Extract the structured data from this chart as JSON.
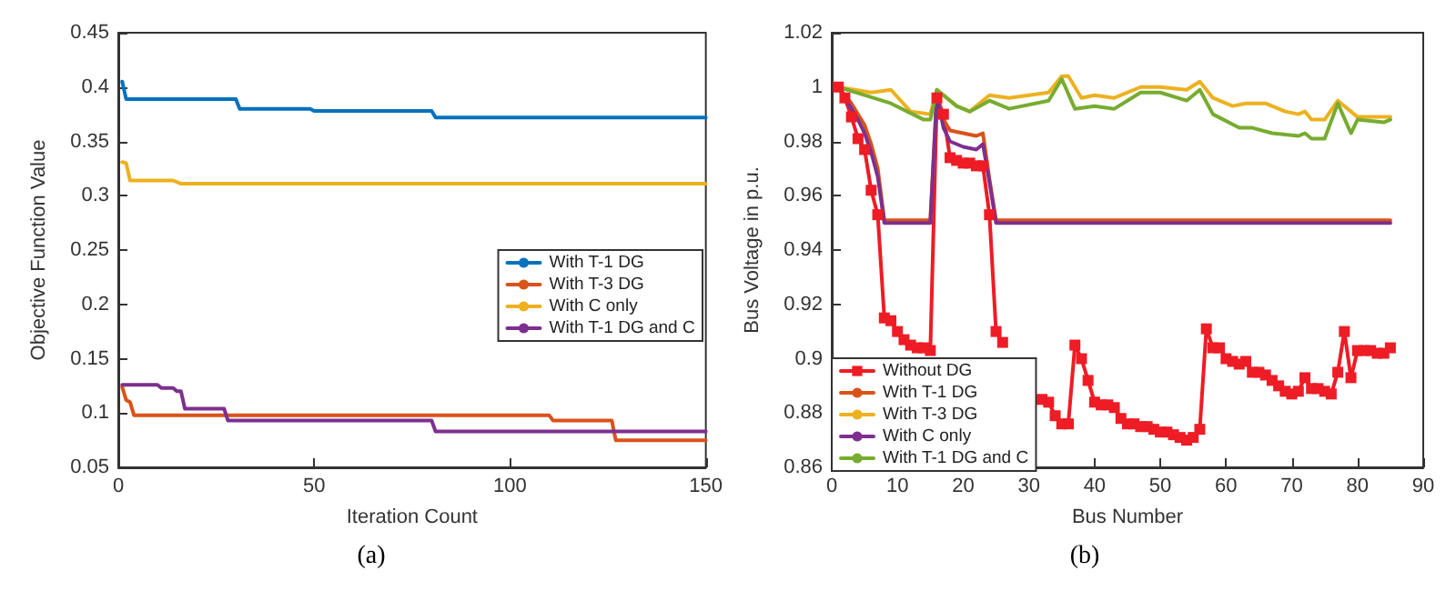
{
  "chart_data": [
    {
      "type": "line",
      "xlabel": "Iteration Count",
      "ylabel": "Objective Function Value",
      "annotations": [
        "(a)"
      ],
      "xlim": [
        0,
        150
      ],
      "xticks": [
        0,
        50,
        100,
        150
      ],
      "ylim": [
        0.05,
        0.45
      ],
      "yticks": [
        0.05,
        0.1,
        0.15,
        0.2,
        0.25,
        0.3,
        0.35,
        0.4,
        0.45
      ],
      "grid": false,
      "legend": "right",
      "marker": "none",
      "line_style": "solid",
      "series": [
        {
          "name": "With T-1 DG",
          "color": "#0072bd",
          "x": [
            1,
            2,
            30,
            31,
            49,
            50,
            80,
            81,
            150
          ],
          "values": [
            0.405,
            0.389,
            0.389,
            0.38,
            0.38,
            0.378,
            0.378,
            0.372,
            0.372
          ]
        },
        {
          "name": "With T-3 DG",
          "color": "#d95319",
          "x": [
            1,
            2,
            3,
            4,
            110,
            111,
            126,
            127,
            150
          ],
          "values": [
            0.124,
            0.112,
            0.11,
            0.098,
            0.098,
            0.093,
            0.093,
            0.075,
            0.075
          ]
        },
        {
          "name": "With C only",
          "color": "#edb120",
          "x": [
            1,
            2,
            3,
            14,
            16,
            150
          ],
          "values": [
            0.331,
            0.33,
            0.314,
            0.314,
            0.311,
            0.311
          ]
        },
        {
          "name": "With T-1 DG and C",
          "color": "#7e2f8e",
          "x": [
            1,
            10,
            11,
            14,
            15,
            16,
            17,
            27,
            28,
            80,
            81,
            150
          ],
          "values": [
            0.126,
            0.126,
            0.123,
            0.123,
            0.12,
            0.12,
            0.104,
            0.104,
            0.093,
            0.093,
            0.083,
            0.083
          ]
        }
      ]
    },
    {
      "type": "line",
      "xlabel": "Bus Number",
      "ylabel": "Bus Voltage in p.u.",
      "annotations": [
        "(b)"
      ],
      "xlim": [
        0,
        90
      ],
      "xticks": [
        0,
        10,
        20,
        30,
        40,
        50,
        60,
        70,
        80,
        90
      ],
      "ylim": [
        0.86,
        1.02
      ],
      "yticks": [
        0.86,
        0.88,
        0.9,
        0.92,
        0.94,
        0.96,
        0.98,
        1,
        1.02
      ],
      "grid": false,
      "legend": "bottom left",
      "marker": "none",
      "line_style": "solid",
      "series": [
        {
          "name": "Without DG",
          "color": "#ee1c25",
          "marker": "square",
          "x": [
            1,
            2,
            3,
            4,
            5,
            6,
            7,
            8,
            9,
            10,
            11,
            12,
            13,
            14,
            15,
            16,
            17,
            18,
            19,
            20,
            21,
            22,
            23,
            24,
            25,
            26,
            27,
            28,
            29,
            30,
            31,
            32,
            33,
            34,
            35,
            36,
            37,
            38,
            39,
            40,
            41,
            42,
            43,
            44,
            45,
            46,
            47,
            48,
            49,
            50,
            51,
            52,
            53,
            54,
            55,
            56,
            57,
            58,
            59,
            60,
            61,
            62,
            63,
            64,
            65,
            66,
            67,
            68,
            69,
            70,
            71,
            72,
            73,
            74,
            75,
            76,
            77,
            78,
            79,
            80,
            81,
            82,
            83,
            84,
            85
          ],
          "values": [
            1.0,
            0.996,
            0.989,
            0.981,
            0.977,
            0.962,
            0.953,
            0.915,
            0.914,
            0.91,
            0.907,
            0.905,
            0.904,
            0.904,
            0.903,
            0.996,
            0.99,
            0.974,
            0.973,
            0.972,
            0.972,
            0.971,
            0.971,
            0.953,
            0.91,
            0.906,
            null,
            null,
            null,
            null,
            null,
            0.885,
            0.884,
            0.879,
            0.876,
            0.876,
            0.905,
            0.9,
            0.892,
            0.884,
            0.883,
            0.883,
            0.882,
            0.878,
            0.876,
            0.876,
            0.875,
            0.875,
            0.874,
            0.873,
            0.873,
            0.872,
            0.871,
            0.87,
            0.871,
            0.874,
            0.911,
            0.904,
            0.904,
            0.9,
            0.899,
            0.898,
            0.899,
            0.895,
            0.895,
            0.894,
            0.892,
            0.89,
            0.888,
            0.887,
            0.888,
            0.893,
            0.889,
            0.889,
            0.888,
            0.887,
            0.895,
            0.91,
            0.893,
            0.903,
            0.903,
            0.903,
            0.902,
            0.902,
            0.904
          ]
        },
        {
          "name": "With T-1 DG",
          "color": "#d95319",
          "x": [
            1,
            3,
            5,
            6,
            7,
            8,
            15,
            16,
            17,
            18,
            22,
            23,
            24,
            25,
            85
          ],
          "values": [
            1.0,
            0.994,
            0.986,
            0.979,
            0.97,
            0.951,
            0.951,
            0.998,
            0.988,
            0.984,
            0.982,
            0.983,
            0.966,
            0.951,
            0.951
          ]
        },
        {
          "name": "With T-3 DG",
          "color": "#edb120",
          "x": [
            1,
            6,
            9,
            12,
            15,
            16,
            19,
            21,
            24,
            27,
            33,
            35,
            36,
            38,
            40,
            43,
            47,
            50,
            54,
            56,
            58,
            61,
            63,
            66,
            69,
            71,
            72,
            73,
            75,
            77,
            80,
            84,
            85
          ],
          "values": [
            1.0,
            0.998,
            0.999,
            0.991,
            0.99,
            0.999,
            0.993,
            0.991,
            0.997,
            0.996,
            0.998,
            1.004,
            1.004,
            0.996,
            0.997,
            0.996,
            1.0,
            1.0,
            0.999,
            1.002,
            0.996,
            0.993,
            0.994,
            0.994,
            0.991,
            0.99,
            0.991,
            0.988,
            0.988,
            0.995,
            0.989,
            0.989,
            0.989
          ]
        },
        {
          "name": "With C only",
          "color": "#7e2f8e",
          "x": [
            1,
            2,
            3,
            4,
            5,
            6,
            7,
            8,
            15,
            16,
            17,
            18,
            20,
            22,
            23,
            24,
            25,
            85
          ],
          "values": [
            1.0,
            0.996,
            0.992,
            0.988,
            0.983,
            0.976,
            0.967,
            0.95,
            0.95,
            0.997,
            0.985,
            0.98,
            0.978,
            0.977,
            0.979,
            0.965,
            0.95,
            0.95
          ]
        },
        {
          "name": "With T-1 DG and C",
          "color": "#77ac30",
          "x": [
            1,
            5,
            9,
            14,
            15,
            16,
            19,
            21,
            24,
            27,
            33,
            35,
            37,
            40,
            43,
            47,
            50,
            54,
            56,
            58,
            62,
            64,
            67,
            71,
            72,
            73,
            75,
            77,
            79,
            80,
            84,
            85
          ],
          "values": [
            1.0,
            0.997,
            0.994,
            0.988,
            0.988,
            0.999,
            0.993,
            0.991,
            0.995,
            0.992,
            0.995,
            1.003,
            0.992,
            0.993,
            0.992,
            0.998,
            0.998,
            0.995,
            0.999,
            0.99,
            0.985,
            0.985,
            0.983,
            0.982,
            0.983,
            0.981,
            0.981,
            0.994,
            0.983,
            0.988,
            0.987,
            0.988
          ]
        }
      ]
    }
  ]
}
